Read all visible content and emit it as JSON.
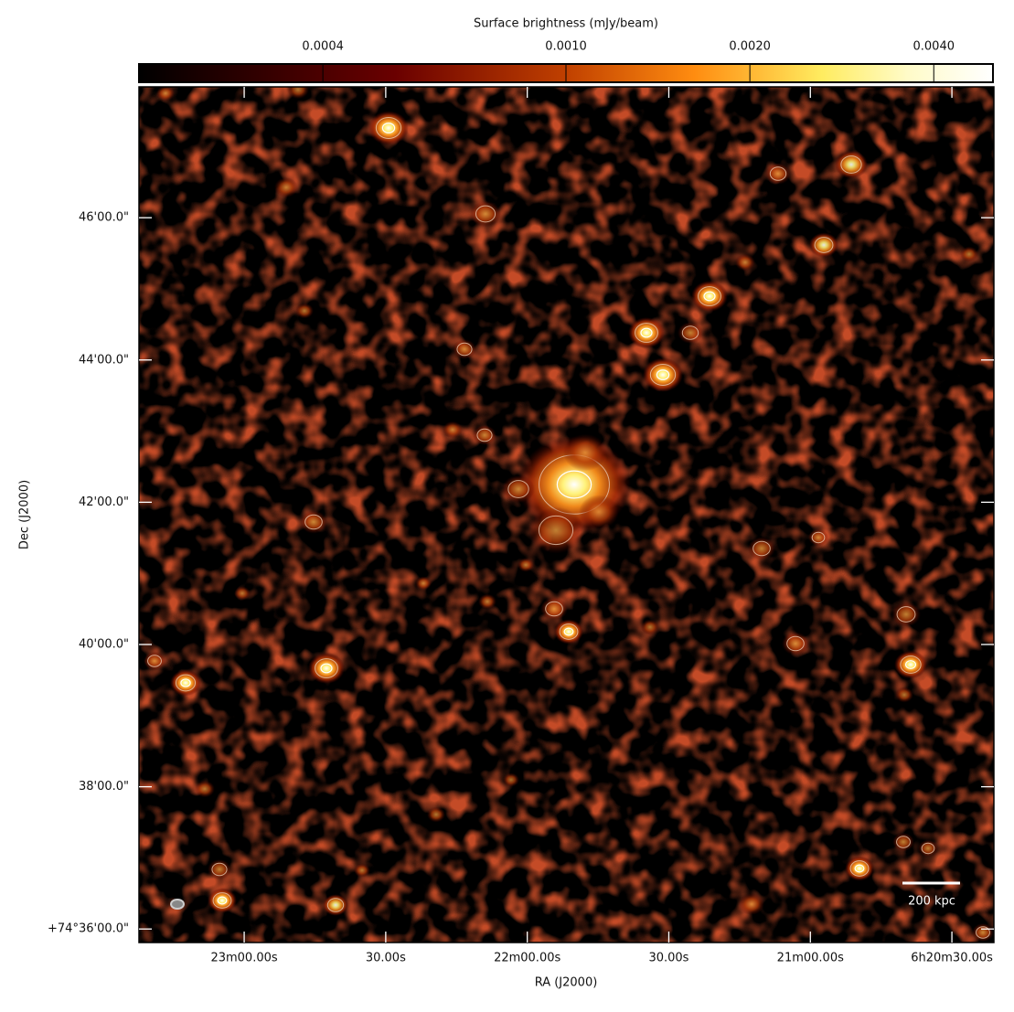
{
  "chart_data": {
    "type": "image",
    "colorbar": {
      "label": "Surface brightness (mJy/beam)",
      "lim": [
        0.0002,
        0.005
      ],
      "scale": "log",
      "ticks": [
        0.0004,
        {
          "value": 0.001,
          "label": "0.0010"
        },
        {
          "value": 0.002,
          "label": "0.0020"
        },
        {
          "value": 0.004,
          "label": "0.0040"
        }
      ]
    },
    "xlabel": "RA (J2000)",
    "ylabel": "Dec (J2000)",
    "xlim": [
      1402.3,
      1221.1
    ],
    "xticks": [
      {
        "value": 1380,
        "label": "23m00.00s"
      },
      {
        "value": 1350,
        "label": "30.00s"
      },
      {
        "value": 1320,
        "label": "22m00.00s"
      },
      {
        "value": 1290,
        "label": "30.00s"
      },
      {
        "value": 1260,
        "label": "21m00.00s"
      },
      {
        "value": 1230,
        "label": "6h20m30.00s"
      }
    ],
    "ylim": [
      35.81,
      47.84
    ],
    "yticks": [
      {
        "value": 36,
        "label": "+74°36'00.0\""
      },
      {
        "value": 38,
        "label": "38'00.0\""
      },
      {
        "value": 40,
        "label": "40'00.0\""
      },
      {
        "value": 42,
        "label": "42'00.0\""
      },
      {
        "value": 44,
        "label": "44'00.0\""
      },
      {
        "value": 46,
        "label": "46'00.0\""
      }
    ],
    "scale_bar": {
      "label": "200 kpc"
    }
  }
}
